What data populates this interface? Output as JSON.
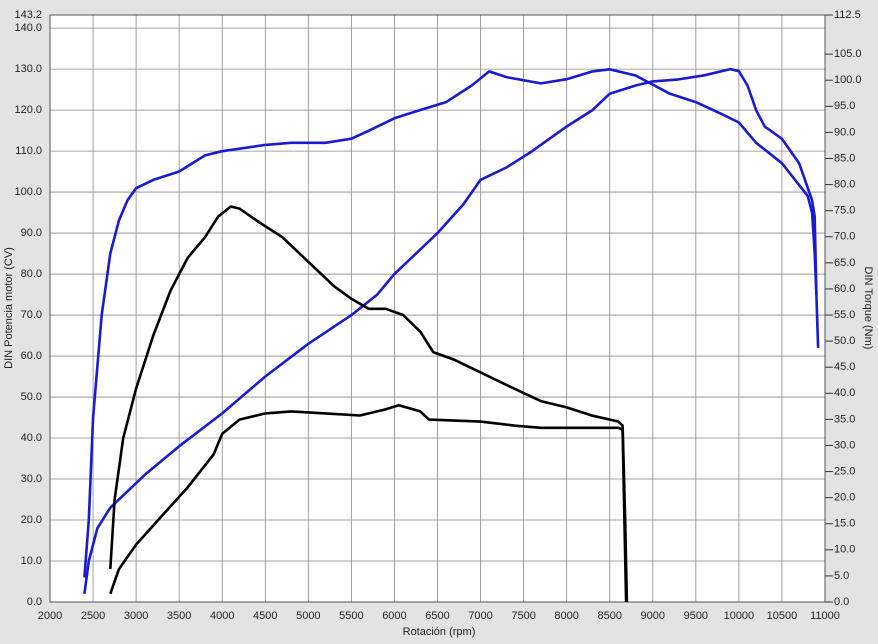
{
  "chart_data": {
    "type": "line",
    "xlabel": "Rotación (rpm)",
    "ylabel": "DIN Potencia motor (CV)",
    "y2label": "DIN Torque (Nm)",
    "xlim": [
      2000,
      11000
    ],
    "xticks": [
      2000,
      2500,
      3000,
      3500,
      4000,
      4500,
      5000,
      5500,
      6000,
      6500,
      7000,
      7500,
      8000,
      8500,
      9000,
      9500,
      10000,
      10500,
      11000
    ],
    "ylim": [
      0,
      143.2
    ],
    "yticks": [
      {
        "value": 0,
        "label": "0.0"
      },
      {
        "value": 10,
        "label": "10.0"
      },
      {
        "value": 20,
        "label": "20.0"
      },
      {
        "value": 30,
        "label": "30.0"
      },
      {
        "value": 40,
        "label": "40.0"
      },
      {
        "value": 50,
        "label": "50.0"
      },
      {
        "value": 60,
        "label": "60.0"
      },
      {
        "value": 70,
        "label": "70.0"
      },
      {
        "value": 80,
        "label": "80.0"
      },
      {
        "value": 90,
        "label": "90.0"
      },
      {
        "value": 100,
        "label": "100.0"
      },
      {
        "value": 110,
        "label": "110.0"
      },
      {
        "value": 120,
        "label": "120.0"
      },
      {
        "value": 130,
        "label": "130.0"
      },
      {
        "value": 140,
        "label": "140.0"
      },
      {
        "value": 143.2,
        "label": "143.2"
      }
    ],
    "y2lim": [
      0,
      112.5
    ],
    "y2ticks": [
      {
        "value": 0,
        "label": "0.0"
      },
      {
        "value": 5,
        "label": "5.0"
      },
      {
        "value": 10,
        "label": "10.0"
      },
      {
        "value": 15,
        "label": "15.0"
      },
      {
        "value": 20,
        "label": "20.0"
      },
      {
        "value": 25,
        "label": "25.0"
      },
      {
        "value": 30,
        "label": "30.0"
      },
      {
        "value": 35,
        "label": "35.0"
      },
      {
        "value": 40,
        "label": "40.0"
      },
      {
        "value": 45,
        "label": "45.0"
      },
      {
        "value": 50,
        "label": "50.0"
      },
      {
        "value": 55,
        "label": "55.0"
      },
      {
        "value": 60,
        "label": "60.0"
      },
      {
        "value": 65,
        "label": "65.0"
      },
      {
        "value": 70,
        "label": "70.0"
      },
      {
        "value": 75,
        "label": "75.0"
      },
      {
        "value": 80,
        "label": "80.0"
      },
      {
        "value": 85,
        "label": "85.0"
      },
      {
        "value": 90,
        "label": "90.0"
      },
      {
        "value": 95,
        "label": "95.0"
      },
      {
        "value": 100,
        "label": "100.0"
      },
      {
        "value": 105,
        "label": "105.0"
      },
      {
        "value": 112.5,
        "label": "112.5"
      }
    ],
    "grid": true,
    "series": [
      {
        "color": "#1a1ad0",
        "axis": "y",
        "x": [
          2400,
          2450,
          2550,
          2700,
          2900,
          3100,
          3500,
          4000,
          4500,
          5000,
          5500,
          5800,
          6000,
          6500,
          6800,
          7000,
          7300,
          7600,
          8000,
          8300,
          8500,
          8800,
          9000,
          9300,
          9600,
          9900,
          10000,
          10100,
          10200,
          10300,
          10500,
          10700,
          10850,
          10880,
          10900,
          10920
        ],
        "values": [
          2,
          10,
          18,
          23,
          27,
          31,
          38,
          46,
          55,
          63,
          70,
          75,
          80,
          90,
          97,
          103,
          106,
          110,
          116,
          120,
          124,
          126,
          127,
          127.5,
          128.5,
          130,
          129.5,
          126,
          120,
          116,
          113,
          107,
          98,
          94,
          75,
          62
        ]
      },
      {
        "color": "#1a1ad0",
        "axis": "y2",
        "x": [
          2400,
          2450,
          2500,
          2600,
          2700,
          2800,
          2900,
          3000,
          3200,
          3500,
          3800,
          4000,
          4500,
          4800,
          5200,
          5500,
          5700,
          6000,
          6300,
          6600,
          6900,
          7100,
          7300,
          7700,
          8000,
          8300,
          8500,
          8800,
          9200,
          9500,
          9800,
          10000,
          10200,
          10500,
          10800,
          10850,
          10880,
          10900
        ],
        "values": [
          4.7,
          15.7,
          35.4,
          55.0,
          66.8,
          73.1,
          77.0,
          79.3,
          80.9,
          82.5,
          85.6,
          86.4,
          87.6,
          88.0,
          88.0,
          88.8,
          90.3,
          92.7,
          94.3,
          95.8,
          99.0,
          101.7,
          100.6,
          99.4,
          100.2,
          101.7,
          102.1,
          100.9,
          97.4,
          95.8,
          93.5,
          91.9,
          88.0,
          84.1,
          77.8,
          74.6,
          66.8,
          58.9
        ]
      },
      {
        "color": "#000000",
        "axis": "y2",
        "x": [
          2700,
          2750,
          2850,
          3000,
          3200,
          3400,
          3600,
          3800,
          3950,
          4100,
          4200,
          4400,
          4700,
          5000,
          5300,
          5500,
          5700,
          5900,
          6100,
          6300,
          6450,
          6700,
          7000,
          7300,
          7700,
          8000,
          8300,
          8600,
          8650,
          8680,
          8700
        ],
        "values": [
          6.3,
          19.6,
          31.4,
          40.9,
          51.1,
          59.7,
          66.0,
          69.9,
          73.8,
          75.8,
          75.4,
          73.1,
          69.9,
          65.2,
          60.5,
          58.1,
          56.2,
          56.2,
          55.0,
          51.8,
          47.9,
          46.4,
          44.0,
          41.6,
          38.5,
          37.3,
          35.7,
          34.6,
          33.8,
          15.7,
          0
        ]
      },
      {
        "color": "#000000",
        "axis": "y",
        "x": [
          2700,
          2800,
          3000,
          3300,
          3600,
          3900,
          4000,
          4200,
          4500,
          4800,
          5200,
          5600,
          5900,
          6050,
          6300,
          6400,
          7000,
          7400,
          7700,
          8600,
          8650,
          8670,
          8690
        ],
        "values": [
          2,
          8,
          14,
          21,
          28,
          36,
          41,
          44.5,
          46,
          46.5,
          46,
          45.5,
          47,
          48,
          46.5,
          44.5,
          44,
          43,
          42.5,
          42.5,
          42,
          20,
          0
        ]
      }
    ]
  }
}
